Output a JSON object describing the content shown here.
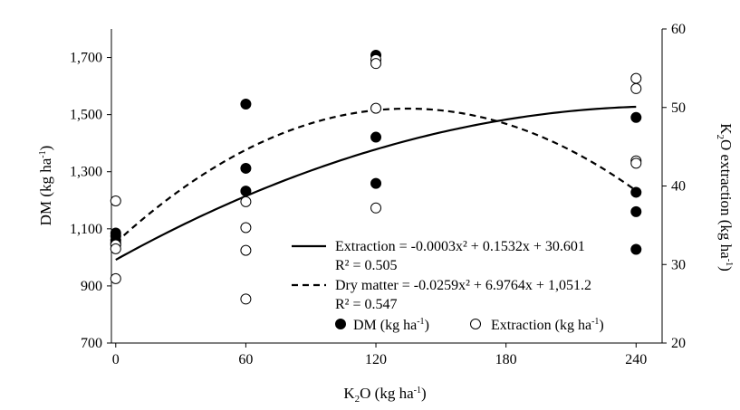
{
  "chart_data": {
    "type": "scatter",
    "x_axis": {
      "label_parts": [
        "K",
        "2",
        "O (kg ha",
        "-1",
        ")"
      ],
      "ticks": [
        "0",
        "60",
        "120",
        "180",
        "240"
      ],
      "range": [
        -2,
        252
      ]
    },
    "y_left": {
      "label_parts": [
        "DM (kg ha",
        "-1",
        ")"
      ],
      "ticks": [
        "700",
        "900",
        "1,100",
        "1,300",
        "1,500",
        "1,700"
      ],
      "range": [
        700,
        1800
      ]
    },
    "y_right": {
      "label_parts": [
        "K",
        "2",
        "O extraction (kg ha",
        "-1",
        ")"
      ],
      "ticks": [
        "20",
        "30",
        "40",
        "50",
        "60"
      ],
      "range": [
        20,
        60
      ]
    },
    "series": [
      {
        "name_parts": [
          "DM (kg ha",
          "-1",
          ")"
        ],
        "axis": "left",
        "marker": "filled-circle",
        "points": [
          [
            0,
            1085
          ],
          [
            0,
            1075
          ],
          [
            0,
            1060
          ],
          [
            0,
            1050
          ],
          [
            60,
            1537
          ],
          [
            60,
            1312
          ],
          [
            60,
            1232
          ],
          [
            120,
            1708
          ],
          [
            120,
            1421
          ],
          [
            120,
            1259
          ],
          [
            240,
            1490
          ],
          [
            240,
            1228
          ],
          [
            240,
            1160
          ],
          [
            240,
            1028
          ]
        ]
      },
      {
        "name_parts": [
          "Extraction (kg ha",
          "-1",
          ")"
        ],
        "axis": "right",
        "marker": "open-circle",
        "points": [
          [
            0,
            38.1
          ],
          [
            0,
            32.5
          ],
          [
            0,
            32.0
          ],
          [
            0,
            28.2
          ],
          [
            60,
            38.0
          ],
          [
            60,
            34.7
          ],
          [
            60,
            31.8
          ],
          [
            60,
            25.6
          ],
          [
            120,
            56.1
          ],
          [
            120,
            55.6
          ],
          [
            120,
            49.9
          ],
          [
            120,
            37.2
          ],
          [
            240,
            53.7
          ],
          [
            240,
            52.4
          ],
          [
            240,
            43.2
          ],
          [
            240,
            42.9
          ]
        ]
      }
    ],
    "trendlines": [
      {
        "label": "Extraction = -0.0003x² + 0.1532x + 30.601",
        "r2": "R² = 0.505",
        "axis": "right",
        "style": "solid",
        "coefficients": {
          "a": -0.0003,
          "b": 0.1532,
          "c": 30.601
        },
        "x_range": [
          0,
          240
        ]
      },
      {
        "label": "Dry matter = -0.0259x² + 6.9764x + 1,051.2",
        "r2": "R² = 0.547",
        "axis": "left",
        "style": "dashed",
        "coefficients": {
          "a": -0.0259,
          "b": 6.9764,
          "c": 1051.2
        },
        "x_range": [
          0,
          240
        ]
      }
    ],
    "legend_placement": "bottom-right",
    "grid": false
  }
}
